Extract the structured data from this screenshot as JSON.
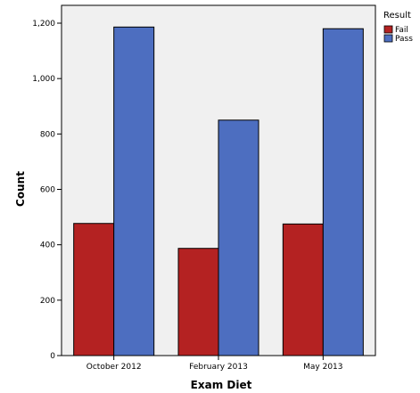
{
  "chart_data": {
    "type": "bar",
    "xlabel": "Exam Diet",
    "ylabel": "Count",
    "categories": [
      "October 2012",
      "February 2013",
      "May 2013"
    ],
    "series": [
      {
        "name": "Fail",
        "values": [
          477,
          387,
          475
        ],
        "color": "#b42222"
      },
      {
        "name": "Pass",
        "values": [
          1186,
          850,
          1180
        ],
        "color": "#4d6ec0"
      }
    ],
    "ylim": [
      0,
      1200
    ],
    "yticks": [
      0,
      200,
      400,
      600,
      800,
      1000,
      1200
    ],
    "ytick_labels": [
      "0",
      "200",
      "400",
      "600",
      "800",
      "1,000",
      "1,200"
    ],
    "legend": {
      "title": "Result",
      "placement": "top-right"
    },
    "grid": false,
    "plot_background": "#f0f0f0"
  }
}
